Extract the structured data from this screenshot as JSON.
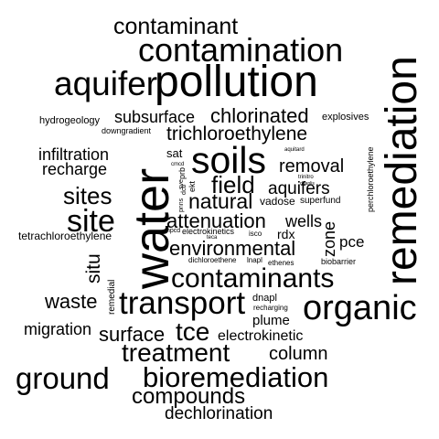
{
  "word_cloud": {
    "background": "#ffffff",
    "ink": "#000000",
    "words": [
      "contaminant",
      "contamination",
      "aquifer",
      "pollution",
      "remediation",
      "hydrogeology",
      "downgradient",
      "subsurface",
      "chlorinated",
      "explosives",
      "trichloroethylene",
      "infiltration",
      "recharge",
      "sat",
      "cmcd",
      "prb",
      "sve",
      "ekt",
      "dcb",
      "soils",
      "aquitard",
      "trinitro",
      "dnaplis",
      "perchloroethylene",
      "removal",
      "aquifers",
      "field",
      "sites",
      "natural",
      "vadose",
      "superfund",
      "pnns",
      "site",
      "attenuation",
      "wells",
      "tetrachloroethylene",
      "npcd",
      "electrokinetics",
      "isco",
      "rdx",
      "teca",
      "zone",
      "pce",
      "environmental",
      "dichloroethene",
      "lnapl",
      "ethenes",
      "biobarrier",
      "water",
      "situ",
      "contaminants",
      "waste",
      "remedial",
      "transport",
      "dnapl",
      "recharging",
      "organic",
      "plume",
      "migration",
      "surface",
      "tce",
      "electrokinetic",
      "treatment",
      "column",
      "ground",
      "bioremediation",
      "compounds",
      "dechlorination"
    ]
  }
}
